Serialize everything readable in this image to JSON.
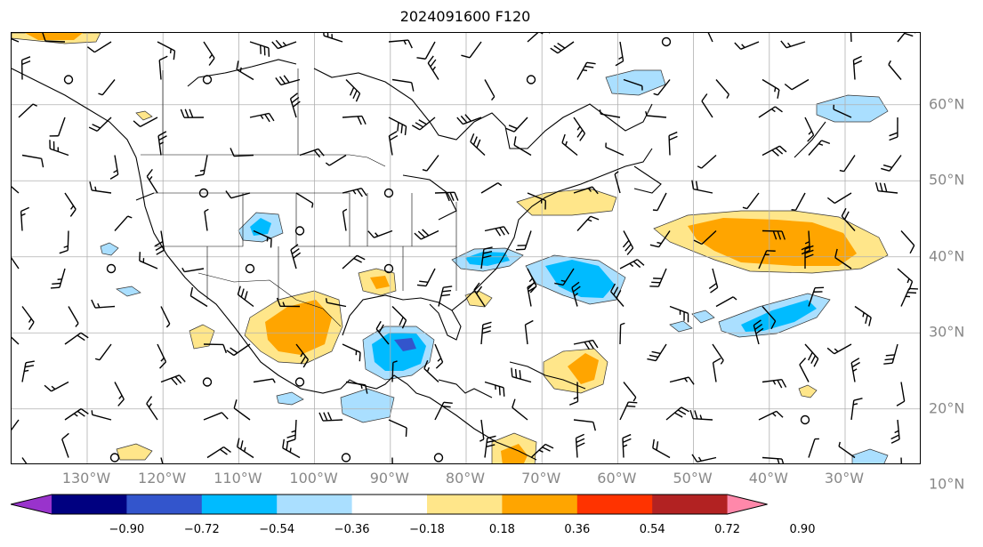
{
  "title": "2024091600 F120",
  "colors": {
    "ocean": "#ffffff",
    "land_line": "#000000",
    "grid": "#b0b0b0",
    "barb": "#000000"
  },
  "lat_labels": [
    {
      "lat": 60,
      "text": "60°N"
    },
    {
      "lat": 50,
      "text": "50°N"
    },
    {
      "lat": 40,
      "text": "40°N"
    },
    {
      "lat": 30,
      "text": "30°N"
    },
    {
      "lat": 20,
      "text": "20°N"
    },
    {
      "lat": 10,
      "text": "10°N"
    }
  ],
  "lon_labels": [
    {
      "lon": -130,
      "text": "130°W"
    },
    {
      "lon": -120,
      "text": "120°W"
    },
    {
      "lon": -110,
      "text": "110°W"
    },
    {
      "lon": -100,
      "text": "100°W"
    },
    {
      "lon": -90,
      "text": "90°W"
    },
    {
      "lon": -80,
      "text": "80°W"
    },
    {
      "lon": -70,
      "text": "70°W"
    },
    {
      "lon": -60,
      "text": "60°W"
    },
    {
      "lon": -50,
      "text": "50°W"
    },
    {
      "lon": -40,
      "text": "40°W"
    },
    {
      "lon": -30,
      "text": "30°W"
    }
  ],
  "colorbar": {
    "colors": [
      "#9933cc",
      "#000080",
      "#3355cc",
      "#00bbff",
      "#aadfff",
      "#ffffff",
      "#ffe68a",
      "#ffa500",
      "#ff3300",
      "#b22222",
      "#ff88aa"
    ],
    "ticks": [
      "−0.90",
      "−0.72",
      "−0.54",
      "−0.36",
      "−0.18",
      "0.18",
      "0.36",
      "0.54",
      "0.72",
      "0.90"
    ]
  }
}
